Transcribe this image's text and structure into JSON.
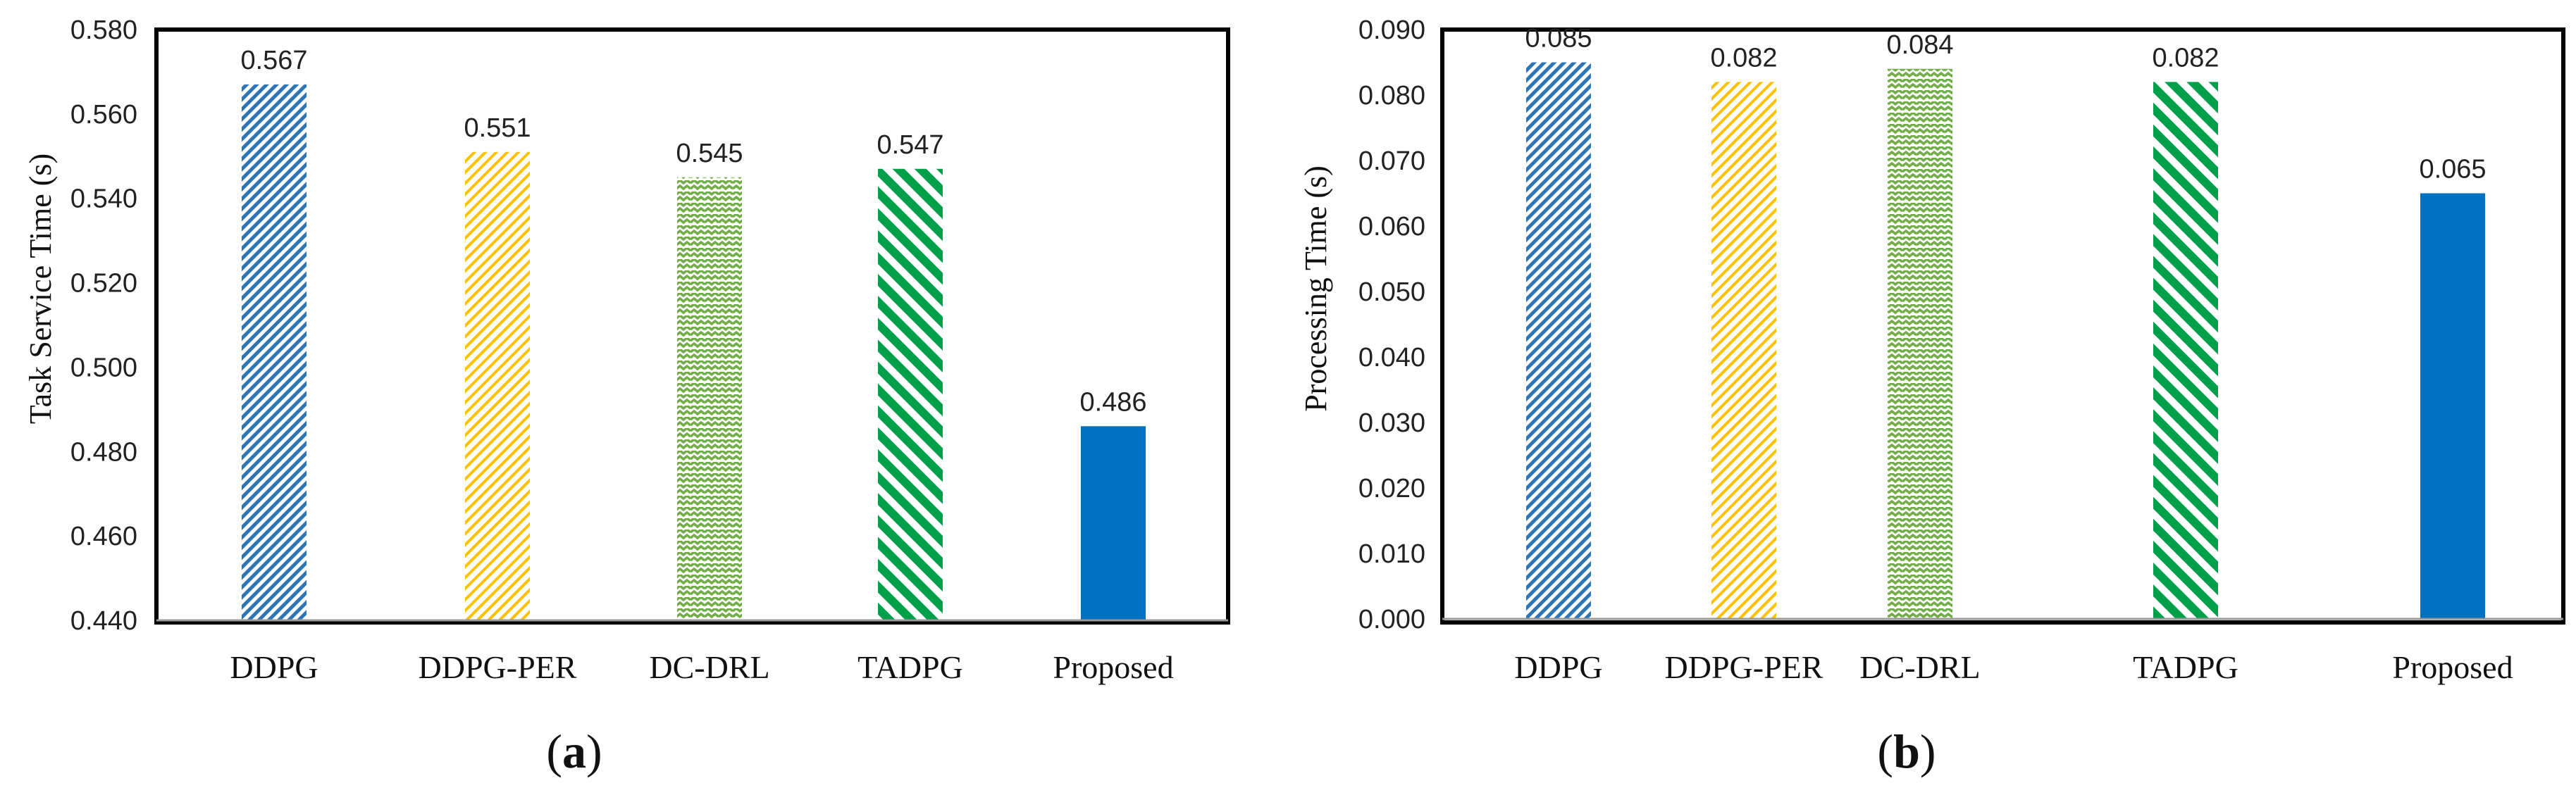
{
  "chart_data": [
    {
      "type": "bar",
      "panel_label": "a",
      "ylabel": "Task Service Time (s)",
      "categories": [
        "DDPG",
        "DDPG-PER",
        "DC-DRL",
        "TADPG",
        "Proposed"
      ],
      "values": [
        0.567,
        0.551,
        0.545,
        0.547,
        0.486
      ],
      "data_labels": [
        "0.567",
        "0.551",
        "0.545",
        "0.547",
        "0.486"
      ],
      "ylim": [
        0.44,
        0.58
      ],
      "yticks": [
        "0.440",
        "0.460",
        "0.480",
        "0.500",
        "0.520",
        "0.540",
        "0.560",
        "0.580"
      ],
      "grid": false,
      "legend": "none"
    },
    {
      "type": "bar",
      "panel_label": "b",
      "ylabel": "Processing Time (s)",
      "categories": [
        "DDPG",
        "DDPG-PER",
        "DC-DRL",
        "TADPG",
        "Proposed"
      ],
      "values": [
        0.085,
        0.082,
        0.084,
        0.082,
        0.065
      ],
      "data_labels": [
        "0.085",
        "0.082",
        "0.084",
        "0.082",
        "0.065"
      ],
      "ylim": [
        0.0,
        0.09
      ],
      "yticks": [
        "0.000",
        "0.010",
        "0.020",
        "0.030",
        "0.040",
        "0.050",
        "0.060",
        "0.070",
        "0.080",
        "0.090"
      ],
      "grid": false,
      "legend": "none"
    }
  ],
  "series_styles": [
    {
      "name": "DDPG",
      "pattern": "dense-diagonal",
      "color": "#2E75B6"
    },
    {
      "name": "DDPG-PER",
      "pattern": "diagonal",
      "color": "#F4B183"
    },
    {
      "name": "DC-DRL",
      "pattern": "zigzag",
      "color": "#70AD47"
    },
    {
      "name": "TADPG",
      "pattern": "wide-diagonal",
      "color": "#00A04A"
    },
    {
      "name": "Proposed",
      "pattern": "solid",
      "color": "#0070C0"
    }
  ]
}
